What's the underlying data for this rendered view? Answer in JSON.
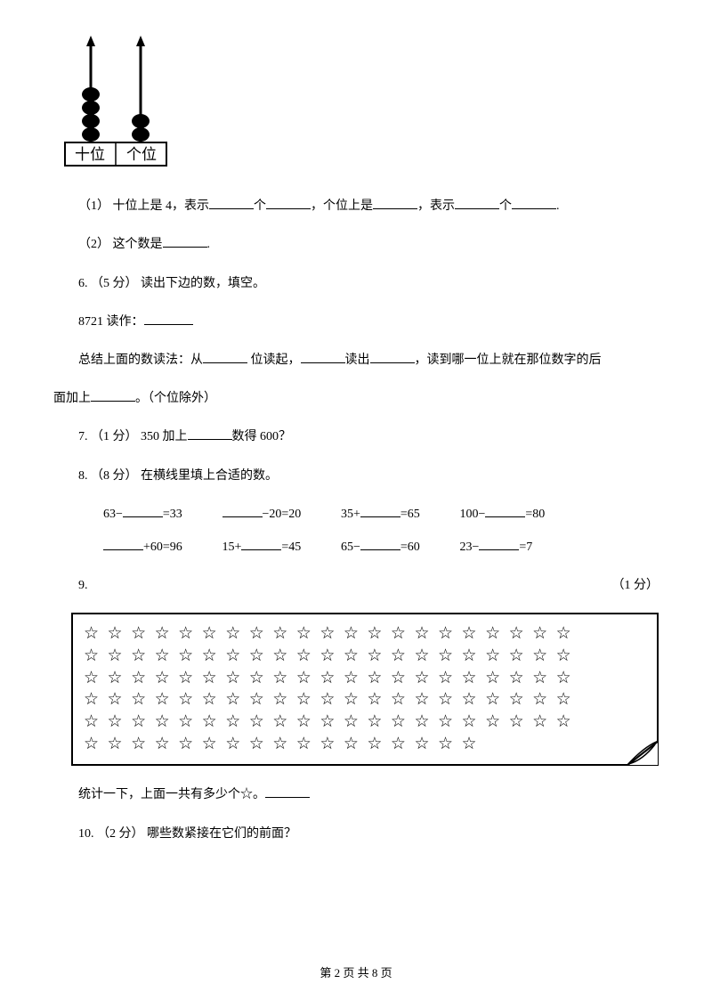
{
  "abacus": {
    "tens_label": "十位",
    "ones_label": "个位",
    "tens_beads": 4,
    "ones_beads": 2,
    "bead_color": "#000000",
    "rod_color": "#000000"
  },
  "q5_1": {
    "prefix": "（1） 十位上是 4，表示",
    "mid1": "个",
    "mid2": "，个位上是",
    "mid3": "，表示",
    "mid4": "个",
    "suffix": "."
  },
  "q5_2": {
    "prefix": "（2） 这个数是",
    "suffix": "."
  },
  "q6": {
    "heading": "6. （5 分） 读出下边的数，填空。",
    "line1_prefix": "8721 读作：",
    "line2_part1": "总结上面的数读法：从",
    "line2_part2": " 位读起，",
    "line2_part3": "读出",
    "line2_part4": "，读到哪一位上就在那位数字的后",
    "line2_cont1": "面加上",
    "line2_cont2": "。（个位除外）"
  },
  "q7": {
    "text1": "7. （1 分） 350 加上",
    "text2": "数得 600？"
  },
  "q8": {
    "heading": "8. （8 分） 在横线里填上合适的数。",
    "row1": [
      {
        "pre": "63−",
        "post": "=33"
      },
      {
        "pre": "",
        "post": "−20=20"
      },
      {
        "pre": "35+",
        "post": "=65"
      },
      {
        "pre": "100−",
        "post": "=80"
      }
    ],
    "row2": [
      {
        "pre": "",
        "post": "+60=96"
      },
      {
        "pre": "15+",
        "post": "=45"
      },
      {
        "pre": "65−",
        "post": "=60"
      },
      {
        "pre": "23−",
        "post": "=7"
      }
    ]
  },
  "q9": {
    "num": "9.",
    "points": "（1 分）",
    "stars": {
      "rows": 6,
      "cols_full": 21,
      "cols_last": 17,
      "glyph": "☆",
      "color": "#000000",
      "border_color": "#000000"
    },
    "line1": "统计一下，上面一共有多少个☆。"
  },
  "q10": {
    "text": "10. （2 分） 哪些数紧接在它们的前面？"
  },
  "footer": "第 2 页 共 8 页",
  "colors": {
    "text": "#000000",
    "background": "#ffffff"
  }
}
